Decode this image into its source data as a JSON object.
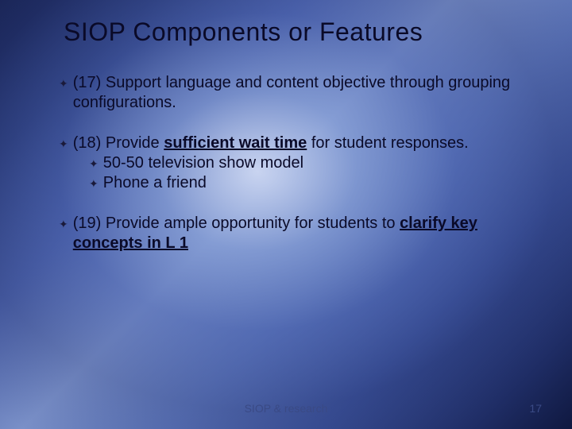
{
  "title": "SIOP Components or Features",
  "bullets": {
    "b17": {
      "prefix": "(17) Support language and content objective through grouping configurations."
    },
    "b18": {
      "prefix": "(18) Provide ",
      "u": "sufficient wait time",
      "suffix": " for student responses.",
      "sub1": "50-50 television show model",
      "sub2": "Phone a friend"
    },
    "b19": {
      "prefix": "(19) Provide ample opportunity for students to ",
      "u": "clarify key concepts in L 1"
    }
  },
  "footer": {
    "center": "SIOP & research",
    "page": "17"
  },
  "style": {
    "bullet_glyph": "✦"
  }
}
